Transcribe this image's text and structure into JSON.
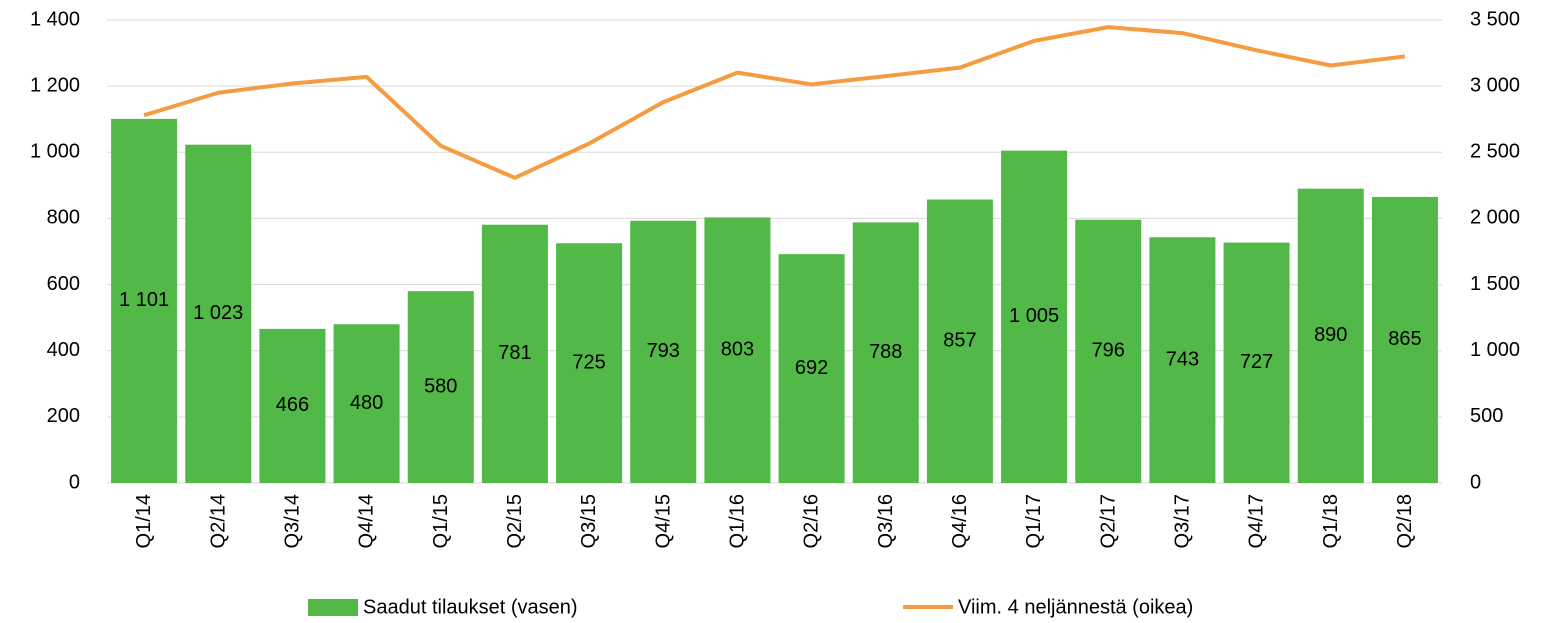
{
  "chart_data": {
    "type": "bar-line",
    "categories": [
      "Q1/14",
      "Q2/14",
      "Q3/14",
      "Q4/14",
      "Q1/15",
      "Q2/15",
      "Q3/15",
      "Q4/15",
      "Q1/16",
      "Q2/16",
      "Q3/16",
      "Q4/16",
      "Q1/17",
      "Q2/17",
      "Q3/17",
      "Q4/17",
      "Q1/18",
      "Q2/18"
    ],
    "series": [
      {
        "name": "Saadut tilaukset (vasen)",
        "type": "bar",
        "color": "#52b848",
        "values": [
          1101,
          1023,
          466,
          480,
          580,
          781,
          725,
          793,
          803,
          692,
          788,
          857,
          1005,
          796,
          743,
          727,
          890,
          865
        ],
        "value_labels": [
          "1 101",
          "1 023",
          "466",
          "480",
          "580",
          "781",
          "725",
          "793",
          "803",
          "692",
          "788",
          "857",
          "1 005",
          "796",
          "743",
          "727",
          "890",
          "865"
        ]
      },
      {
        "name": "Viim. 4 neljännestä (oikea)",
        "type": "line",
        "axis": "y2",
        "color": "#f59b42",
        "values": [
          2780,
          2950,
          3020,
          3070,
          2549,
          2307,
          2566,
          2879,
          3102,
          3013,
          3076,
          3140,
          3342,
          3446,
          3401,
          3271,
          3156,
          3225
        ]
      }
    ],
    "ylim": [
      0,
      1400
    ],
    "yticks": [
      0,
      200,
      400,
      600,
      800,
      {
        "value": 1000,
        "label": "1 000"
      },
      {
        "value": 1200,
        "label": "1 200"
      },
      {
        "value": 1400,
        "label": "1 400"
      }
    ],
    "y2lim": [
      0,
      3500
    ],
    "y2ticks": [
      0,
      500,
      {
        "value": 1000,
        "label": "1 000"
      },
      {
        "value": 1500,
        "label": "1 500"
      },
      {
        "value": 2000,
        "label": "2 000"
      },
      {
        "value": 2500,
        "label": "2 500"
      },
      {
        "value": 3000,
        "label": "3 000"
      },
      {
        "value": 3500,
        "label": "3 500"
      }
    ],
    "grid": true,
    "legend": "bottom"
  }
}
